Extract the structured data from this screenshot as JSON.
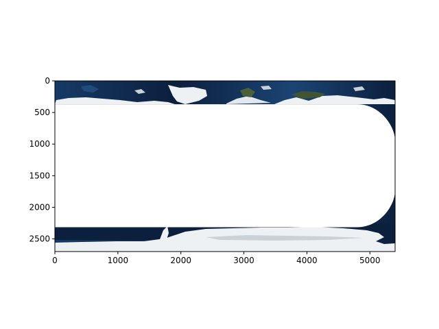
{
  "chart_data": {
    "type": "image",
    "title": "",
    "xlabel": "",
    "ylabel": "",
    "xlim": [
      0,
      5400
    ],
    "ylim": [
      2700,
      0
    ],
    "y_inverted": true,
    "x_ticks": [
      0,
      1000,
      2000,
      3000,
      4000,
      5000
    ],
    "y_ticks": [
      0,
      500,
      1000,
      1500,
      2000,
      2500
    ],
    "grid": false,
    "legend": "none",
    "image_content": "satellite-earth-map",
    "masked_region": {
      "x_start": 0,
      "x_end": 5400,
      "y_start": 370,
      "y_end": 2315,
      "right_cap_start": 4800
    }
  },
  "colors": {
    "ocean_dark": "#0c1f3d",
    "ocean": "#163a66",
    "ocean_light": "#2a5584",
    "land_green": "#4a5f3a",
    "ice": "#eef1f4",
    "ice_shadow": "#c9d1d9",
    "mask": "#ffffff",
    "axis": "#000000"
  }
}
